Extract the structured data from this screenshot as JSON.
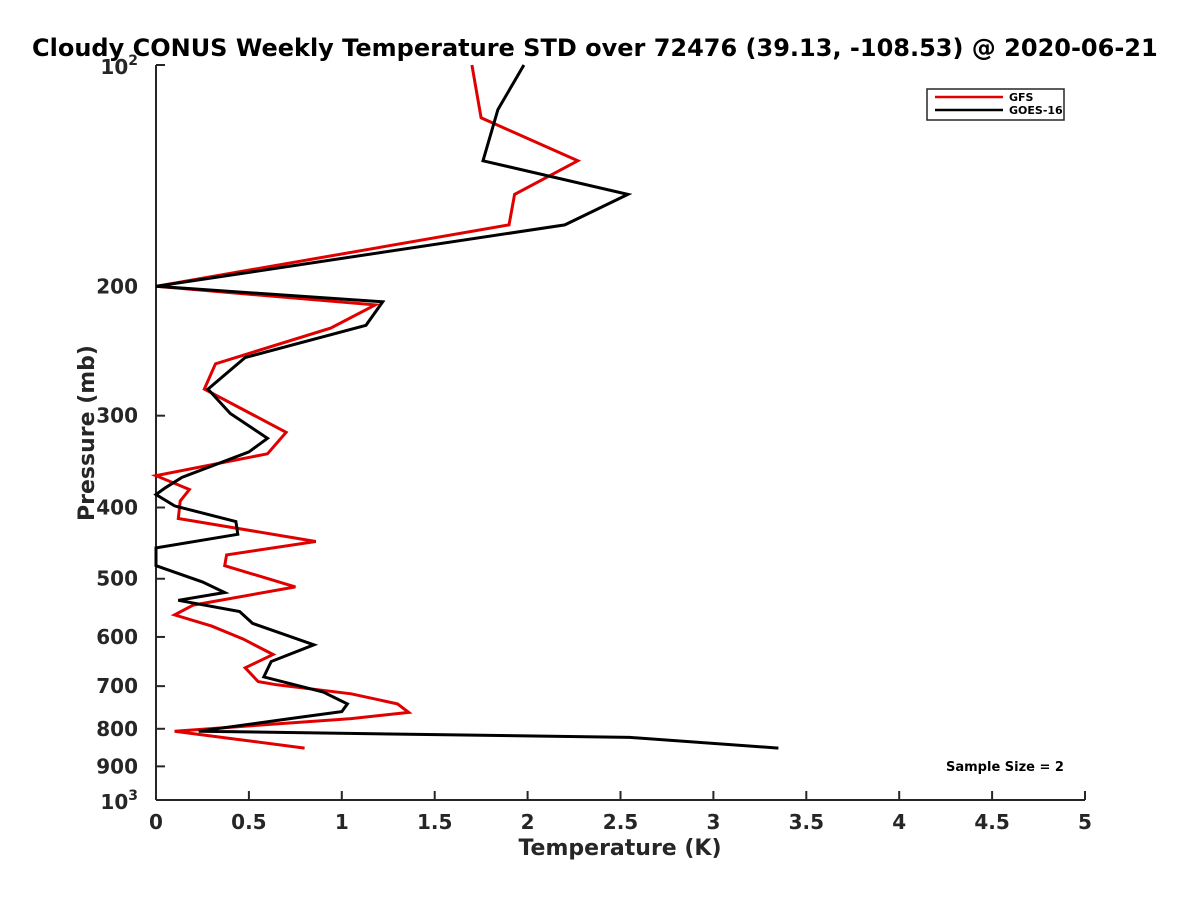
{
  "chart_data": {
    "type": "line",
    "title": "Cloudy CONUS Weekly Temperature STD over 72476 (39.13, -108.53) @ 2020-06-21",
    "xlabel": "Temperature (K)",
    "ylabel": "Pressure (mb)",
    "xlim": [
      0,
      5
    ],
    "ylim": [
      100,
      1000
    ],
    "y_scale": "log",
    "y_reversed": true,
    "grid": false,
    "legend_position": "top-right",
    "x_ticks": [
      0,
      0.5,
      1,
      1.5,
      2,
      2.5,
      3,
      3.5,
      4,
      4.5,
      5
    ],
    "x_tick_labels": [
      "0",
      "0.5",
      "1",
      "1.5",
      "2",
      "2.5",
      "3",
      "3.5",
      "4",
      "4.5",
      "5"
    ],
    "y_ticks": [
      200,
      300,
      400,
      500,
      600,
      700,
      800,
      900
    ],
    "y_tick_labels": [
      "200",
      "300",
      "400",
      "500",
      "600",
      "700",
      "800",
      "900"
    ],
    "y_tick_top": {
      "base": "10",
      "exp": "2"
    },
    "y_tick_bottom": {
      "base": "10",
      "exp": "3"
    },
    "annotation": "Sample Size = 2",
    "series": [
      {
        "name": "GFS",
        "color": "#e00000",
        "points": [
          [
            1.7,
            100
          ],
          [
            1.75,
            118
          ],
          [
            2.27,
            135
          ],
          [
            1.93,
            150
          ],
          [
            1.9,
            165
          ],
          [
            0.0,
            200
          ],
          [
            1.18,
            212
          ],
          [
            0.94,
            228
          ],
          [
            0.32,
            255
          ],
          [
            0.26,
            276
          ],
          [
            0.7,
            316
          ],
          [
            0.6,
            338
          ],
          [
            0.0,
            362
          ],
          [
            0.18,
            378
          ],
          [
            0.13,
            392
          ],
          [
            0.12,
            414
          ],
          [
            0.86,
            445
          ],
          [
            0.38,
            464
          ],
          [
            0.37,
            480
          ],
          [
            0.75,
            513
          ],
          [
            0.2,
            543
          ],
          [
            0.1,
            560
          ],
          [
            0.3,
            580
          ],
          [
            0.47,
            604
          ],
          [
            0.63,
            634
          ],
          [
            0.48,
            661
          ],
          [
            0.55,
            690
          ],
          [
            0.65,
            697
          ],
          [
            1.05,
            717
          ],
          [
            1.3,
            740
          ],
          [
            1.36,
            760
          ],
          [
            1.05,
            775
          ],
          [
            0.1,
            806
          ],
          [
            0.39,
            824
          ],
          [
            0.8,
            850
          ]
        ]
      },
      {
        "name": "GOES-16",
        "color": "#000000",
        "points": [
          [
            1.98,
            100
          ],
          [
            1.84,
            115
          ],
          [
            1.76,
            135
          ],
          [
            2.54,
            150
          ],
          [
            2.2,
            165
          ],
          [
            0.0,
            200
          ],
          [
            1.22,
            210
          ],
          [
            1.13,
            226
          ],
          [
            0.48,
            250
          ],
          [
            0.28,
            276
          ],
          [
            0.4,
            298
          ],
          [
            0.6,
            322
          ],
          [
            0.5,
            336
          ],
          [
            0.14,
            364
          ],
          [
            0.05,
            376
          ],
          [
            0.0,
            384
          ],
          [
            0.1,
            398
          ],
          [
            0.43,
            418
          ],
          [
            0.44,
            435
          ],
          [
            0.0,
            454
          ],
          [
            0.0,
            480
          ],
          [
            0.25,
            505
          ],
          [
            0.37,
            522
          ],
          [
            0.12,
            535
          ],
          [
            0.45,
            554
          ],
          [
            0.52,
            575
          ],
          [
            0.85,
            615
          ],
          [
            0.62,
            648
          ],
          [
            0.58,
            680
          ],
          [
            0.9,
            713
          ],
          [
            1.03,
            740
          ],
          [
            1.0,
            758
          ],
          [
            0.77,
            772
          ],
          [
            0.23,
            806
          ],
          [
            2.55,
            822
          ],
          [
            3.35,
            850
          ]
        ]
      }
    ]
  }
}
